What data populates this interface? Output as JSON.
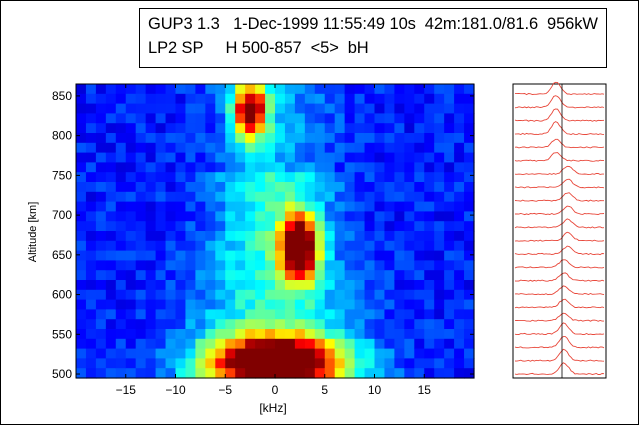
{
  "header": {
    "line1": "GUP3 1.3   1-Dec-1999 11:55:49 10s  42m:181.0/81.6  956kW",
    "line2": "LP2 SP     H 500-857  <5>  bH"
  },
  "chart_data": [
    {
      "type": "heatmap",
      "title": "",
      "xlabel": "[kHz]",
      "ylabel": "Altitude [km]",
      "xlim": [
        -20,
        20
      ],
      "ylim": [
        495,
        865
      ],
      "xticks": [
        -15,
        -10,
        -5,
        0,
        5,
        10,
        15
      ],
      "yticks": [
        500,
        550,
        600,
        650,
        700,
        750,
        800,
        850
      ],
      "colormap": "jet",
      "features": [
        {
          "x": -2.5,
          "y": 830,
          "sx": 1.2,
          "sy": 25,
          "amp": 0.85
        },
        {
          "x": 2.5,
          "y": 660,
          "sx": 1.3,
          "sy": 28,
          "amp": 0.95
        },
        {
          "x": 0,
          "y": 515,
          "sx": 4.5,
          "sy": 22,
          "amp": 1.0
        }
      ]
    },
    {
      "type": "line",
      "title": "",
      "description_series_count": 22,
      "line_color": "#e8473a",
      "center_line": true
    }
  ]
}
